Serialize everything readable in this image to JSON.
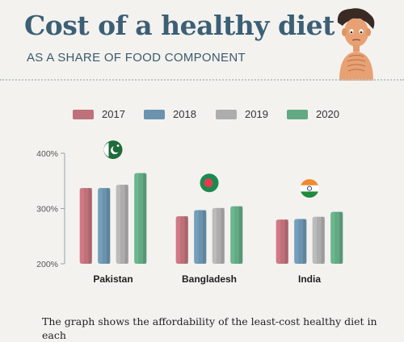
{
  "header": {
    "title": "Cost of a healthy diet",
    "subtitle": "AS A SHARE OF FOOD COMPONENT"
  },
  "description": "The graph shows the affordability of the least-cost healthy diet in each",
  "colors": {
    "background": "#f3f2ef",
    "title": "#3c5f75",
    "2017": "#c0707a",
    "2018": "#6b93ae",
    "2019": "#aeadad",
    "2020": "#63a984"
  },
  "chart_data": {
    "type": "bar",
    "title": "",
    "xlabel": "",
    "ylabel": "",
    "ylim": [
      200,
      400
    ],
    "yticks": [
      200,
      300,
      400
    ],
    "ytick_labels": [
      "200%",
      "300%",
      "400%"
    ],
    "categories": [
      "Pakistan",
      "Bangladesh",
      "India"
    ],
    "category_icons": [
      "flag-pakistan-icon",
      "flag-bangladesh-icon",
      "flag-india-icon"
    ],
    "series": [
      {
        "name": "2017",
        "color": "#c0707a",
        "values": [
          337,
          286,
          280
        ]
      },
      {
        "name": "2018",
        "color": "#6b93ae",
        "values": [
          337,
          297,
          281
        ]
      },
      {
        "name": "2019",
        "color": "#aeadad",
        "values": [
          343,
          301,
          285
        ]
      },
      {
        "name": "2020",
        "color": "#63a984",
        "values": [
          364,
          304,
          294
        ]
      }
    ],
    "legend_position": "top",
    "grid": false
  }
}
